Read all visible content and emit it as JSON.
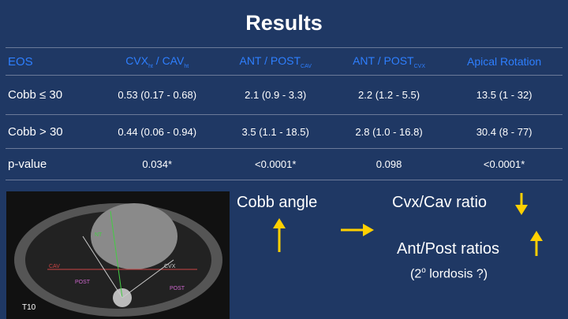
{
  "header": {
    "title": "Results"
  },
  "table": {
    "header": [
      {
        "parts": [
          "EOS"
        ]
      },
      {
        "parts": [
          "CVX",
          "ht",
          " / CAV",
          "ht"
        ]
      },
      {
        "parts": [
          "ANT / POST",
          "CAV"
        ]
      },
      {
        "parts": [
          "ANT / POST",
          "CVX"
        ]
      },
      {
        "parts": [
          "Apical Rotation"
        ]
      }
    ],
    "rows": [
      [
        "Cobb ≤ 30",
        "0.53 (0.17 - 0.68)",
        "2.1 (0.9 - 3.3)",
        "2.2 (1.2 - 5.5)",
        "13.5 (1 - 32)"
      ],
      [
        "Cobb > 30",
        "0.44 (0.06 - 0.94)",
        "3.5 (1.1 - 18.5)",
        "2.8 (1.0 - 16.8)",
        "30.4 (8 - 77)"
      ],
      [
        "p-value",
        "0.034*",
        "<0.0001*",
        "0.098",
        "<0.0001*"
      ]
    ]
  },
  "image": {
    "labels": [
      "NT",
      "CAV",
      "CVX",
      "POST",
      "POST",
      "T10"
    ]
  },
  "notes": {
    "cobb": "Cobb angle",
    "cvx_cav": "Cvx/Cav ratio",
    "ant_post": "Ant/Post  ratios",
    "lordosis": {
      "parts": [
        "(2",
        "o",
        "  lordosis ?)"
      ]
    }
  }
}
